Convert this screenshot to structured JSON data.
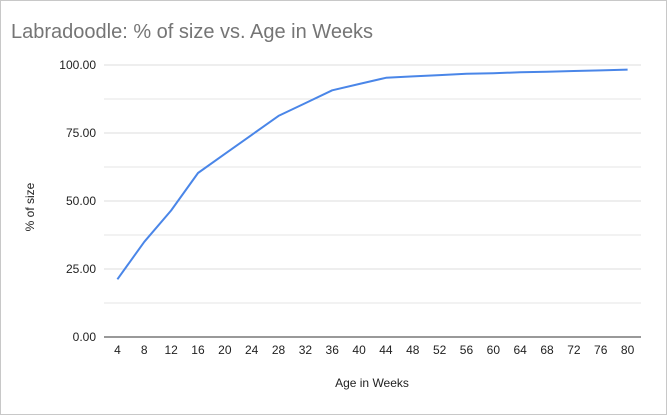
{
  "chart_data": {
    "type": "line",
    "title": "Labradoodle: % of size vs. Age in Weeks",
    "xlabel": "Age in Weeks",
    "ylabel": "% of size",
    "x": [
      4,
      8,
      12,
      16,
      20,
      24,
      28,
      32,
      36,
      40,
      44,
      48,
      52,
      56,
      60,
      64,
      68,
      72,
      76,
      80
    ],
    "series": [
      {
        "values": [
          21.2,
          35.0,
          46.5,
          60.3,
          67.3,
          74.3,
          81.3,
          86.0,
          90.7,
          93.0,
          95.3,
          95.8,
          96.3,
          96.8,
          97.0,
          97.3,
          97.5,
          97.8,
          98.0,
          98.3
        ]
      }
    ],
    "ylim": [
      0,
      100
    ],
    "yticks": [
      "100.00",
      "75.00",
      "50.00",
      "25.00",
      "0.00"
    ],
    "grid": true,
    "colors": {
      "line": "#4a86e8",
      "grid": "#dddddd",
      "axis": "#333333"
    }
  }
}
